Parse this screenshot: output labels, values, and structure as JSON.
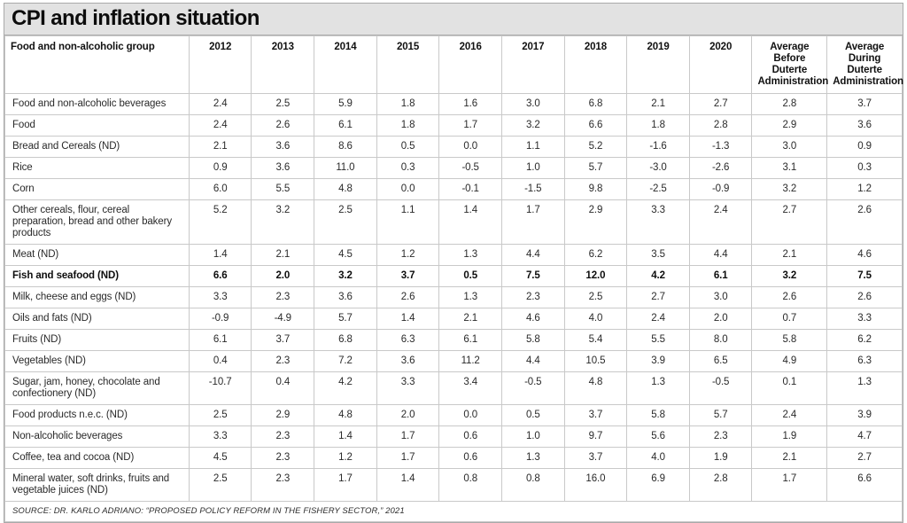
{
  "title": "CPI and inflation situation",
  "colors": {
    "title_bar_bg": "#e2e2e2",
    "card_border": "#a9a9a9",
    "grid_line": "#c9c9c9",
    "text": "#1c1c1c"
  },
  "chart_data": {
    "type": "table",
    "title": "CPI and inflation situation",
    "row_label_header": "Food and non-alcoholic group",
    "columns": [
      "2012",
      "2013",
      "2014",
      "2015",
      "2016",
      "2017",
      "2018",
      "2019",
      "2020",
      "Average Before Duterte Administration",
      "Average During Duterte Administration"
    ],
    "rows": [
      {
        "label": "Food and non-alcoholic beverages",
        "bold": false,
        "values": [
          "2.4",
          "2.5",
          "5.9",
          "1.8",
          "1.6",
          "3.0",
          "6.8",
          "2.1",
          "2.7",
          "2.8",
          "3.7"
        ]
      },
      {
        "label": "Food",
        "bold": false,
        "values": [
          "2.4",
          "2.6",
          "6.1",
          "1.8",
          "1.7",
          "3.2",
          "6.6",
          "1.8",
          "2.8",
          "2.9",
          "3.6"
        ]
      },
      {
        "label": "Bread and Cereals (ND)",
        "bold": false,
        "values": [
          "2.1",
          "3.6",
          "8.6",
          "0.5",
          "0.0",
          "1.1",
          "5.2",
          "-1.6",
          "-1.3",
          "3.0",
          "0.9"
        ]
      },
      {
        "label": "Rice",
        "bold": false,
        "values": [
          "0.9",
          "3.6",
          "11.0",
          "0.3",
          "-0.5",
          "1.0",
          "5.7",
          "-3.0",
          "-2.6",
          "3.1",
          "0.3"
        ]
      },
      {
        "label": "Corn",
        "bold": false,
        "values": [
          "6.0",
          "5.5",
          "4.8",
          "0.0",
          "-0.1",
          "-1.5",
          "9.8",
          "-2.5",
          "-0.9",
          "3.2",
          "1.2"
        ]
      },
      {
        "label": "Other cereals, flour, cereal preparation, bread and other bakery products",
        "bold": false,
        "values": [
          "5.2",
          "3.2",
          "2.5",
          "1.1",
          "1.4",
          "1.7",
          "2.9",
          "3.3",
          "2.4",
          "2.7",
          "2.6"
        ]
      },
      {
        "label": "Meat (ND)",
        "bold": false,
        "values": [
          "1.4",
          "2.1",
          "4.5",
          "1.2",
          "1.3",
          "4.4",
          "6.2",
          "3.5",
          "4.4",
          "2.1",
          "4.6"
        ]
      },
      {
        "label": "Fish and seafood (ND)",
        "bold": true,
        "values": [
          "6.6",
          "2.0",
          "3.2",
          "3.7",
          "0.5",
          "7.5",
          "12.0",
          "4.2",
          "6.1",
          "3.2",
          "7.5"
        ]
      },
      {
        "label": "Milk, cheese and eggs (ND)",
        "bold": false,
        "values": [
          "3.3",
          "2.3",
          "3.6",
          "2.6",
          "1.3",
          "2.3",
          "2.5",
          "2.7",
          "3.0",
          "2.6",
          "2.6"
        ]
      },
      {
        "label": "Oils and fats (ND)",
        "bold": false,
        "values": [
          "-0.9",
          "-4.9",
          "5.7",
          "1.4",
          "2.1",
          "4.6",
          "4.0",
          "2.4",
          "2.0",
          "0.7",
          "3.3"
        ]
      },
      {
        "label": "Fruits (ND)",
        "bold": false,
        "values": [
          "6.1",
          "3.7",
          "6.8",
          "6.3",
          "6.1",
          "5.8",
          "5.4",
          "5.5",
          "8.0",
          "5.8",
          "6.2"
        ]
      },
      {
        "label": "Vegetables (ND)",
        "bold": false,
        "values": [
          "0.4",
          "2.3",
          "7.2",
          "3.6",
          "11.2",
          "4.4",
          "10.5",
          "3.9",
          "6.5",
          "4.9",
          "6.3"
        ]
      },
      {
        "label": "Sugar, jam, honey, chocolate and confectionery (ND)",
        "bold": false,
        "values": [
          "-10.7",
          "0.4",
          "4.2",
          "3.3",
          "3.4",
          "-0.5",
          "4.8",
          "1.3",
          "-0.5",
          "0.1",
          "1.3"
        ]
      },
      {
        "label": "Food products n.e.c. (ND)",
        "bold": false,
        "values": [
          "2.5",
          "2.9",
          "4.8",
          "2.0",
          "0.0",
          "0.5",
          "3.7",
          "5.8",
          "5.7",
          "2.4",
          "3.9"
        ]
      },
      {
        "label": "Non-alcoholic beverages",
        "bold": false,
        "values": [
          "3.3",
          "2.3",
          "1.4",
          "1.7",
          "0.6",
          "1.0",
          "9.7",
          "5.6",
          "2.3",
          "1.9",
          "4.7"
        ]
      },
      {
        "label": "Coffee, tea and cocoa (ND)",
        "bold": false,
        "values": [
          "4.5",
          "2.3",
          "1.2",
          "1.7",
          "0.6",
          "1.3",
          "3.7",
          "4.0",
          "1.9",
          "2.1",
          "2.7"
        ]
      },
      {
        "label": "Mineral water, soft drinks, fruits and vegetable juices (ND)",
        "bold": false,
        "values": [
          "2.5",
          "2.3",
          "1.7",
          "1.4",
          "0.8",
          "0.8",
          "16.0",
          "6.9",
          "2.8",
          "1.7",
          "6.6"
        ]
      }
    ],
    "source": "SOURCE: DR. KARLO ADRIANO: “PROPOSED POLICY REFORM IN THE FISHERY SECTOR,” 2021"
  }
}
